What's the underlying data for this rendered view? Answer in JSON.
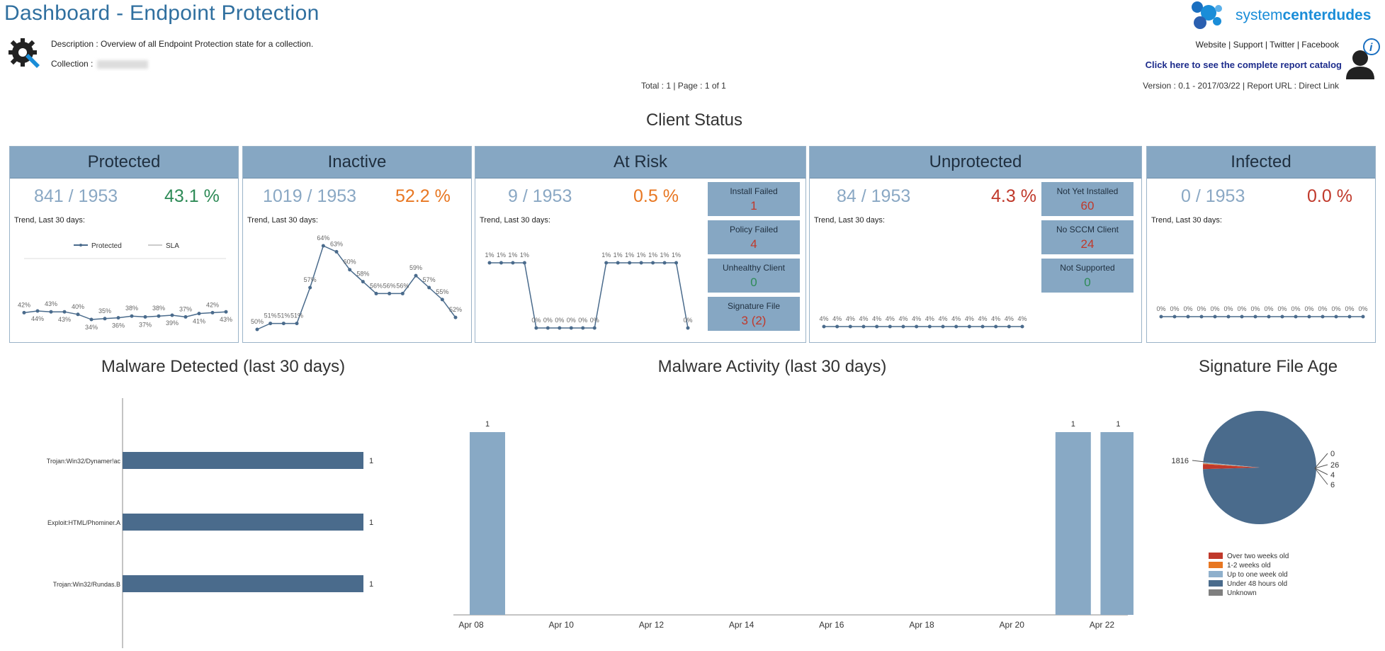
{
  "header": {
    "title": "Dashboard - Endpoint Protection",
    "description": "Description : Overview of all Endpoint Protection state for a collection.",
    "collection_label": "Collection :",
    "total": "Total : 1 | Page : 1 of 1",
    "logo_text_a": "system",
    "logo_text_b": "center",
    "logo_text_c": "dudes",
    "links": "Website | Support | Twitter | Facebook",
    "catalog": "Click here to see the complete report catalog",
    "version": "Version : 0.1 - 2017/03/22 | Report URL : Direct Link"
  },
  "client_status": {
    "title": "Client Status",
    "trend_label": "Trend, Last 30 days:",
    "cards": [
      {
        "name": "Protected",
        "count": "841 / 1953",
        "pct": "43.1 %"
      },
      {
        "name": "Inactive",
        "count": "1019 / 1953",
        "pct": "52.2 %"
      },
      {
        "name": "At Risk",
        "count": "9 / 1953",
        "pct": "0.5 %"
      },
      {
        "name": "Unprotected",
        "count": "84 / 1953",
        "pct": "4.3 %"
      },
      {
        "name": "Infected",
        "count": "0 / 1953",
        "pct": "0.0 %"
      }
    ],
    "at_risk_boxes": [
      {
        "label": "Install Failed",
        "value": "1"
      },
      {
        "label": "Policy Failed",
        "value": "4"
      },
      {
        "label": "Unhealthy Client",
        "value": "0"
      },
      {
        "label": "Signature File",
        "value": "3 (2)"
      }
    ],
    "unprotected_boxes": [
      {
        "label": "Not Yet Installed",
        "value": "60"
      },
      {
        "label": "No SCCM Client",
        "value": "24"
      },
      {
        "label": "Not Supported",
        "value": "0"
      }
    ],
    "protected_legend": [
      "Protected",
      "SLA"
    ]
  },
  "colors": {
    "accent": "#86a7c3",
    "bar": "#4a6b8c",
    "bar_light": "#88a9c5",
    "green": "#2e8b57",
    "orange": "#e87722",
    "red": "#c0392b"
  },
  "chart_data": [
    {
      "type": "line",
      "id": "protected-trend",
      "values": [
        42,
        44,
        43,
        43,
        40,
        34,
        35,
        36,
        38,
        37,
        38,
        39,
        37,
        41,
        42,
        43
      ],
      "labels": [
        "42%",
        "44%",
        "43%",
        "43%",
        "40%",
        "34%",
        "35%",
        "36%",
        "38%",
        "37%",
        "38%",
        "39%",
        "37%",
        "41%",
        "42%",
        "43%"
      ]
    },
    {
      "type": "line",
      "id": "inactive-trend",
      "values": [
        50,
        51,
        51,
        51,
        57,
        64,
        63,
        60,
        58,
        56,
        56,
        56,
        59,
        57,
        55,
        52
      ],
      "labels": [
        "50%",
        "51%",
        "51%",
        "51%",
        "57%",
        "64%",
        "63%",
        "60%",
        "58%",
        "56%",
        "56%",
        "56%",
        "59%",
        "57%",
        "55%",
        "52%"
      ]
    },
    {
      "type": "line",
      "id": "atrisk-trend",
      "values": [
        1,
        1,
        1,
        1,
        0,
        0,
        0,
        0,
        0,
        0,
        1,
        1,
        1,
        1,
        1,
        1,
        1,
        0
      ],
      "labels": [
        "1%",
        "1%",
        "1%",
        "1%",
        "0%",
        "0%",
        "0%",
        "0%",
        "0%",
        "0%",
        "1%",
        "1%",
        "1%",
        "1%",
        "1%",
        "1%",
        "1%",
        "0%"
      ]
    },
    {
      "type": "line",
      "id": "unprotected-trend",
      "values": [
        4,
        4,
        4,
        4,
        4,
        4,
        4,
        4,
        4,
        4,
        4,
        4,
        4,
        4,
        4,
        4
      ],
      "labels": [
        "4%",
        "4%",
        "4%",
        "4%",
        "4%",
        "4%",
        "4%",
        "4%",
        "4%",
        "4%",
        "4%",
        "4%",
        "4%",
        "4%",
        "4%",
        "4%"
      ]
    },
    {
      "type": "line",
      "id": "infected-trend",
      "values": [
        0,
        0,
        0,
        0,
        0,
        0,
        0,
        0,
        0,
        0,
        0,
        0,
        0,
        0,
        0,
        0
      ],
      "labels": [
        "0%",
        "0%",
        "0%",
        "0%",
        "0%",
        "0%",
        "0%",
        "0%",
        "0%",
        "0%",
        "0%",
        "0%",
        "0%",
        "0%",
        "0%",
        "0%"
      ]
    },
    {
      "type": "bar",
      "id": "malware-detected",
      "orientation": "horizontal",
      "title": "Malware Detected (last 30 days)",
      "categories": [
        "Trojan:Win32/Dynamer!ac",
        "Exploit:HTML/Phominer.A",
        "Trojan:Win32/Rundas.B"
      ],
      "values": [
        1,
        1,
        1
      ]
    },
    {
      "type": "bar",
      "id": "malware-activity",
      "title": "Malware Activity (last 30 days)",
      "x_ticks": [
        "Apr 08",
        "Apr 10",
        "Apr 12",
        "Apr 14",
        "Apr 16",
        "Apr 18",
        "Apr 20",
        "Apr 22"
      ],
      "bars": [
        {
          "x": "Apr 08",
          "value": 1
        },
        {
          "x": "Apr 21",
          "value": 1
        },
        {
          "x": "Apr 22",
          "value": 1
        }
      ]
    },
    {
      "type": "pie",
      "id": "signature-age",
      "title": "Signature File Age",
      "slices": [
        {
          "name": "Over two weeks old",
          "value": 26,
          "color": "#c0392b"
        },
        {
          "name": "1-2 weeks old",
          "value": 4,
          "color": "#e87722"
        },
        {
          "name": "Up to one week old",
          "value": 6,
          "color": "#8fb0cc"
        },
        {
          "name": "Under 48 hours old",
          "value": 1816,
          "color": "#4a6b8c"
        },
        {
          "name": "Unknown",
          "value": 0,
          "color": "#7f7f7f"
        }
      ],
      "data_labels": [
        "1816",
        "0",
        "26",
        "4",
        "6"
      ]
    }
  ]
}
